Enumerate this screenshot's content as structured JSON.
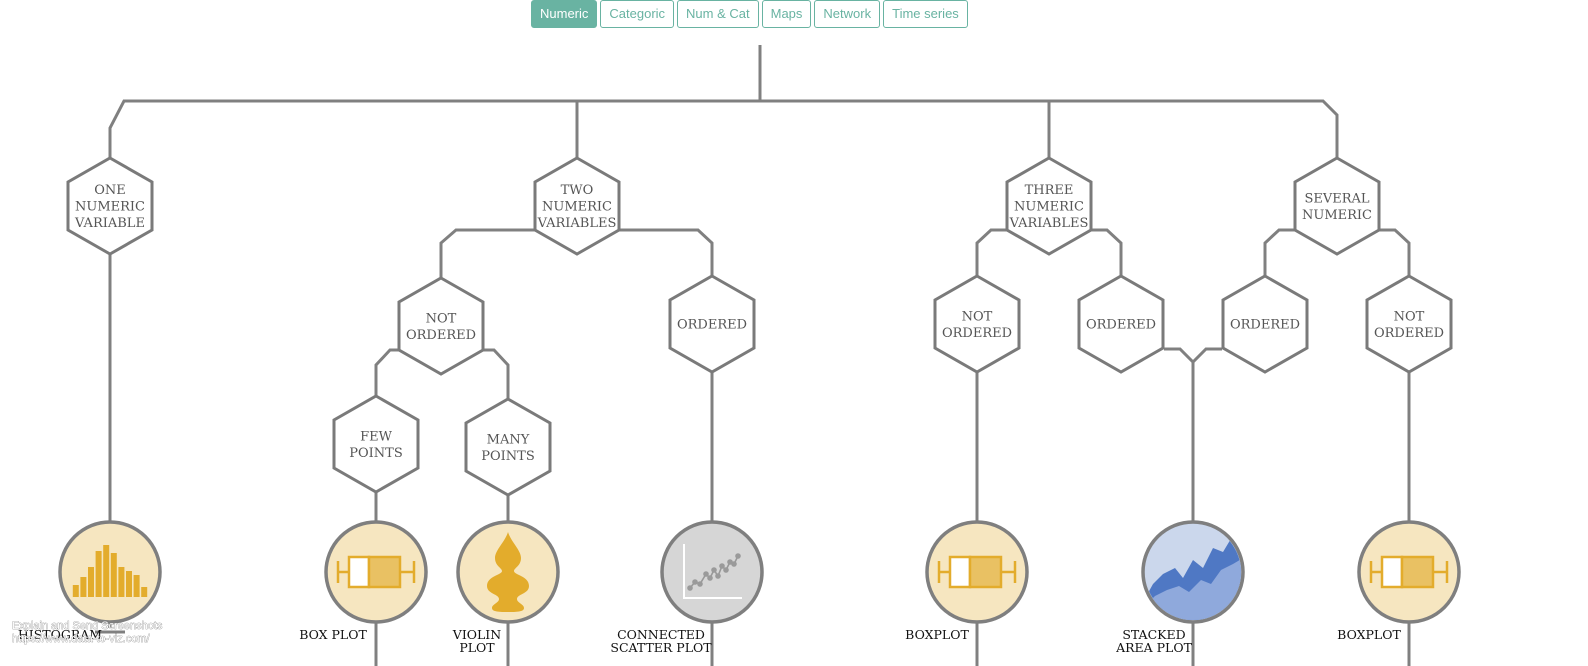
{
  "tabs": [
    {
      "label": "Numeric",
      "active": true
    },
    {
      "label": "Categoric",
      "active": false
    },
    {
      "label": "Num & Cat",
      "active": false
    },
    {
      "label": "Maps",
      "active": false
    },
    {
      "label": "Network",
      "active": false
    },
    {
      "label": "Time series",
      "active": false
    }
  ],
  "nodes": {
    "one_numeric": [
      "ONE",
      "NUMERIC",
      "VARIABLE"
    ],
    "two_numeric": [
      "TWO",
      "NUMERIC",
      "VARIABLES"
    ],
    "three_numeric": [
      "THREE",
      "NUMERIC",
      "VARIABLES"
    ],
    "several_numeric": [
      "SEVERAL",
      "NUMERIC"
    ],
    "two_not_ordered": [
      "NOT",
      "ORDERED"
    ],
    "two_ordered": [
      "ORDERED"
    ],
    "few_points": [
      "FEW",
      "POINTS"
    ],
    "many_points": [
      "MANY",
      "POINTS"
    ],
    "three_not_ordered": [
      "NOT",
      "ORDERED"
    ],
    "three_ordered": [
      "ORDERED"
    ],
    "several_ordered": [
      "ORDERED"
    ],
    "several_not_ordered": [
      "NOT",
      "ORDERED"
    ]
  },
  "leaves": {
    "histogram": {
      "label": [
        "HISTOGRAM"
      ],
      "icon": "histogram-icon"
    },
    "box_plot": {
      "label": [
        "BOX PLOT"
      ],
      "icon": "boxplot-icon"
    },
    "violin_plot": {
      "label": [
        "VIOLIN",
        "PLOT"
      ],
      "icon": "violin-icon"
    },
    "connected_scatter": {
      "label": [
        "CONNECTED",
        "SCATTER PLOT"
      ],
      "icon": "connected-scatter-icon"
    },
    "boxplot_three": {
      "label": [
        "BOXPLOT"
      ],
      "icon": "boxplot-icon"
    },
    "stacked_area": {
      "label": [
        "STACKED",
        "AREA PLOT"
      ],
      "icon": "stacked-area-icon"
    },
    "boxplot_several": {
      "label": [
        "BOXPLOT"
      ],
      "icon": "boxplot-icon"
    }
  },
  "watermark": [
    "Explain and Send Screenshots",
    "https://www.data-to-viz.com/"
  ],
  "colors": {
    "accent": "#69b3a2",
    "line": "#808080",
    "hex_stroke": "#7a7a7a",
    "leaf_fill": "#f6e6c0",
    "icon_gold": "#e3ac2c",
    "area_fill": "#cbd7ec",
    "area_blue": "#6b8fcf",
    "scatter_fill": "#d6d6d6"
  }
}
